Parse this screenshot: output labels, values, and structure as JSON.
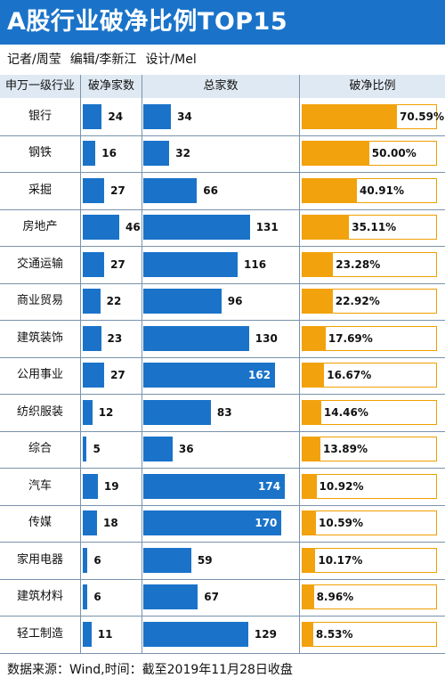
{
  "title": "A股行业破净比例TOP15",
  "credits": {
    "reporter": "记者/周莹",
    "editor": "编辑/李新江",
    "designer": "设计/Mel"
  },
  "headers": {
    "industry": "申万一级行业",
    "count": "破净家数",
    "total": "总家数",
    "ratio": "破净比例"
  },
  "footer": "数据来源：Wind,时间：截至2019年11月28日收盘",
  "colors": {
    "title_bg": "#1a73c9",
    "blue_bar": "#1a73c9",
    "orange_bar": "#f2a20c",
    "header_bg": "#dfe9f3"
  },
  "chart_data": {
    "type": "bar",
    "categories": [
      "银行",
      "钢铁",
      "采掘",
      "房地产",
      "交通运输",
      "商业贸易",
      "建筑装饰",
      "公用事业",
      "纺织服装",
      "综合",
      "汽车",
      "传媒",
      "家用电器",
      "建筑材料",
      "轻工制造"
    ],
    "series": [
      {
        "name": "破净家数",
        "values": [
          24,
          16,
          27,
          46,
          27,
          22,
          23,
          27,
          12,
          5,
          19,
          18,
          6,
          6,
          11
        ]
      },
      {
        "name": "总家数",
        "values": [
          34,
          32,
          66,
          131,
          116,
          96,
          130,
          162,
          83,
          36,
          174,
          170,
          59,
          67,
          129
        ]
      },
      {
        "name": "破净比例",
        "values": [
          70.59,
          50.0,
          40.91,
          35.11,
          23.28,
          22.92,
          17.69,
          16.67,
          14.46,
          13.89,
          10.92,
          10.59,
          10.17,
          8.96,
          8.53
        ]
      }
    ],
    "ratio_labels": [
      "70.59%",
      "50.00%",
      "40.91%",
      "35.11%",
      "23.28%",
      "22.92%",
      "17.69%",
      "16.67%",
      "14.46%",
      "13.89%",
      "10.92%",
      "10.59%",
      "10.17%",
      "8.96%",
      "8.53%"
    ]
  }
}
